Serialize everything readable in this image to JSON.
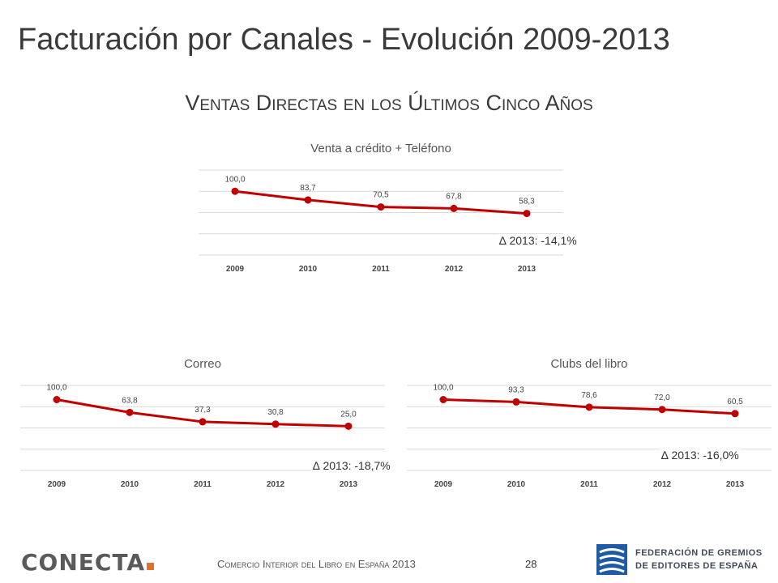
{
  "page": {
    "title": "Facturación por Canales - Evolución 2009-2013",
    "subtitle": "Ventas Directas en los Últimos Cinco Años",
    "footer": "Comercio Interior del Libro en España 2013",
    "page_number": "28",
    "logo_left_text": "CONECTA",
    "logo_right_line1": "FEDERACIÓN DE GREMIOS",
    "logo_right_line2": "DE EDITORES DE ESPAÑA"
  },
  "colors": {
    "line": "#c00000",
    "grid": "#d9d9d9",
    "text": "#3b3b3b",
    "accent_dot": "#e0702a",
    "fge_blue": "#1f5aa6"
  },
  "chart_data": [
    {
      "type": "line",
      "title": "Venta a crédito + Teléfono",
      "categories": [
        "2009",
        "2010",
        "2011",
        "2012",
        "2013"
      ],
      "values": [
        100.0,
        83.7,
        70.5,
        67.8,
        58.3
      ],
      "labels": [
        "100,0",
        "83,7",
        "70,5",
        "67,8",
        "58,3"
      ],
      "annotation": "∆ 2013: -14,1%",
      "ylim": [
        -20,
        140
      ],
      "grid": true
    },
    {
      "type": "line",
      "title": "Correo",
      "categories": [
        "2009",
        "2010",
        "2011",
        "2012",
        "2013"
      ],
      "values": [
        100.0,
        63.8,
        37.3,
        30.8,
        25.0
      ],
      "labels": [
        "100,0",
        "63,8",
        "37,3",
        "30,8",
        "25,0"
      ],
      "annotation": "∆ 2013: -18,7%",
      "ylim": [
        -100,
        140
      ],
      "grid": true
    },
    {
      "type": "line",
      "title": "Clubs del libro",
      "categories": [
        "2009",
        "2010",
        "2011",
        "2012",
        "2013"
      ],
      "values": [
        100.0,
        93.3,
        78.6,
        72.0,
        60.5
      ],
      "labels": [
        "100,0",
        "93,3",
        "78,6",
        "72,0",
        "60,5"
      ],
      "annotation": "∆ 2013: -16,0%",
      "ylim": [
        -100,
        140
      ],
      "grid": true
    }
  ]
}
